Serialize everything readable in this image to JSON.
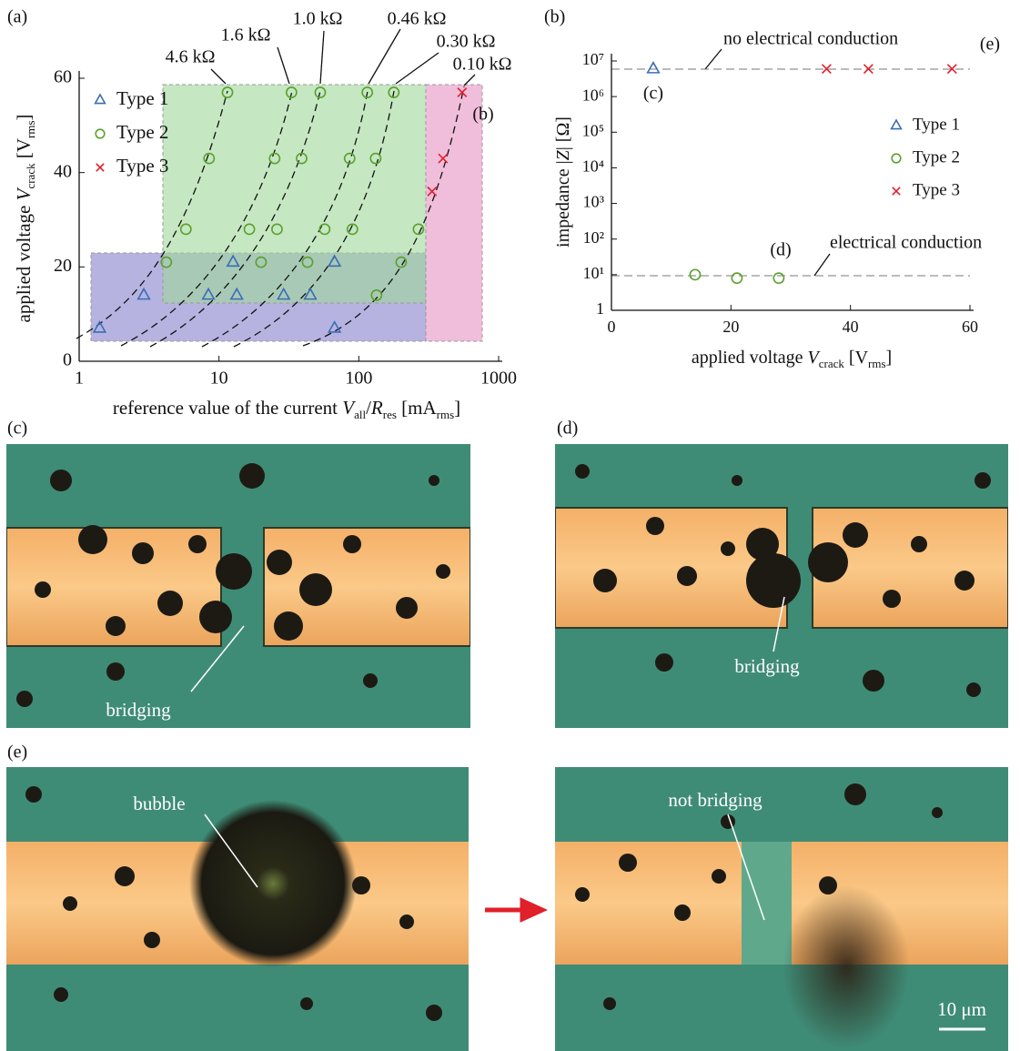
{
  "chart_data": [
    {
      "type": "scatter",
      "panel": "(a)",
      "xlabel": [
        "reference value of the current ",
        "V",
        "all",
        "/",
        "R",
        "res",
        " [mA",
        "rms",
        "]"
      ],
      "ylabel": [
        "applied voltage ",
        "V",
        "crack",
        " [V",
        "rms",
        "]"
      ],
      "xscale": "log",
      "xlim": [
        1,
        1000
      ],
      "ylim": [
        0,
        60
      ],
      "xticks": [
        1,
        10,
        100,
        1000
      ],
      "yticks": [
        0,
        20,
        40,
        60
      ],
      "legend": "upper left",
      "series": [
        {
          "name": "Type 1",
          "marker": "triangle",
          "color": "#3a6db5",
          "x": [
            1.4,
            2.9,
            8.4,
            12.6,
            13.4,
            29,
            45,
            67,
            67
          ],
          "y": [
            7,
            14,
            14,
            21,
            14,
            14,
            14,
            21,
            7
          ]
        },
        {
          "name": "Type 2",
          "marker": "circle",
          "color": "#5aa02c",
          "x": [
            11.5,
            33,
            53,
            115,
            178,
            8.5,
            25,
            39,
            86,
            132,
            5.8,
            16.5,
            26,
            57,
            90,
            267,
            4.2,
            20,
            43,
            201,
            134
          ],
          "y": [
            57,
            57,
            57,
            57,
            57,
            43,
            43,
            43,
            43,
            43,
            28,
            28,
            28,
            28,
            28,
            28,
            21,
            21,
            21,
            21,
            14
          ]
        },
        {
          "name": "Type 3",
          "marker": "cross",
          "color": "#e0202a",
          "x": [
            334,
            400,
            548
          ],
          "y": [
            36,
            43,
            57
          ]
        }
      ],
      "annotations": [
        "4.6 kΩ",
        "1.6 kΩ",
        "1.0 kΩ",
        "0.46 kΩ",
        "0.30 kΩ",
        "0.10 kΩ",
        "(b)"
      ]
    },
    {
      "type": "scatter",
      "panel": "(b)",
      "xlabel": [
        "applied voltage ",
        "V",
        "crack",
        " [V",
        "rms",
        "]"
      ],
      "ylabel": [
        "impedance |",
        "Z",
        "| [Ω]"
      ],
      "yscale": "log",
      "xlim": [
        0,
        60
      ],
      "ylim": [
        1,
        10000000
      ],
      "xticks": [
        0,
        20,
        40,
        60
      ],
      "yticks": [
        1,
        {
          "value": 10,
          "label": "10¹"
        },
        {
          "value": 100,
          "label": "10²"
        },
        {
          "value": 1000,
          "label": "10³"
        },
        {
          "value": 10000,
          "label": "10⁴"
        },
        {
          "value": 100000,
          "label": "10⁵"
        },
        {
          "value": 1000000,
          "label": "10⁶"
        },
        {
          "value": 10000000,
          "label": "10⁷"
        }
      ],
      "legend": "center right",
      "series": [
        {
          "name": "Type 1",
          "marker": "triangle",
          "color": "#3a6db5",
          "x": [
            7
          ],
          "y": [
            6000000
          ]
        },
        {
          "name": "Type 2",
          "marker": "circle",
          "color": "#5aa02c",
          "x": [
            14,
            21,
            28
          ],
          "y": [
            10,
            8,
            8
          ]
        },
        {
          "name": "Type 3",
          "marker": "cross",
          "color": "#e0202a",
          "x": [
            36,
            43,
            57
          ],
          "y": [
            6000000,
            6000000,
            6000000
          ]
        }
      ],
      "annotations": [
        "no electrical conduction",
        "electrical conduction",
        "(c)",
        "(d)",
        "(e)"
      ]
    }
  ],
  "photos": {
    "c": {
      "panel": "(c)",
      "note": "bridging"
    },
    "d": {
      "panel": "(d)",
      "note": "bridging"
    },
    "e": {
      "panel": "(e)",
      "before": "bubble",
      "after": "not bridging",
      "scale": "10 μm"
    }
  }
}
